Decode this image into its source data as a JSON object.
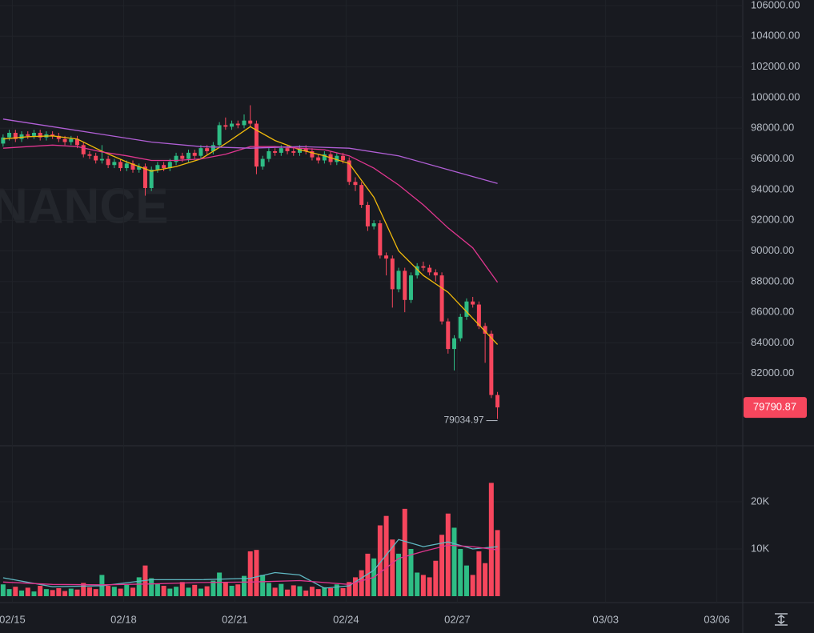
{
  "chart_data": {
    "type": "candlestick",
    "watermark": "NANCE",
    "up_color": "#2ebd85",
    "down_color": "#f6465d",
    "xlim": [
      -0.5,
      119.3
    ],
    "xticks": [
      {
        "value": 1.5,
        "label": "02/15"
      },
      {
        "value": 19.5,
        "label": "02/18"
      },
      {
        "value": 37.5,
        "label": "02/21"
      },
      {
        "value": 55.5,
        "label": "02/24"
      },
      {
        "value": 73.5,
        "label": "02/27"
      },
      {
        "value": 97.5,
        "label": "03/03"
      },
      {
        "value": 115.5,
        "label": "03/06"
      }
    ],
    "ylim": [
      77290,
      106365
    ],
    "yticks": [
      {
        "value": 82000,
        "label": "82000.00"
      },
      {
        "value": 84000,
        "label": "84000.00"
      },
      {
        "value": 86000,
        "label": "86000.00"
      },
      {
        "value": 88000,
        "label": "88000.00"
      },
      {
        "value": 90000,
        "label": "90000.00"
      },
      {
        "value": 92000,
        "label": "92000.00"
      },
      {
        "value": 94000,
        "label": "94000.00"
      },
      {
        "value": 96000,
        "label": "96000.00"
      },
      {
        "value": 98000,
        "label": "98000.00"
      },
      {
        "value": 100000,
        "label": "100000.00"
      },
      {
        "value": 102000,
        "label": "102000.00"
      },
      {
        "value": 104000,
        "label": "104000.00"
      },
      {
        "value": 106000,
        "label": "106000.00"
      }
    ],
    "open": [
      97000,
      97400,
      97700,
      97300,
      97600,
      97500,
      97700,
      97400,
      97600,
      97500,
      97300,
      97100,
      97300,
      96900,
      96300,
      96200,
      95900,
      96000,
      95600,
      95800,
      95400,
      95700,
      95300,
      95500,
      94100,
      95300,
      95600,
      95400,
      95800,
      96200,
      96000,
      96400,
      96200,
      96700,
      96500,
      96900,
      98200,
      98100,
      98300,
      98200,
      98500,
      98300,
      95500,
      96000,
      96500,
      96400,
      96700,
      96500,
      96400,
      96700,
      96500,
      96100,
      95900,
      96300,
      95800,
      96200,
      95900,
      94500,
      94300,
      93000,
      91600,
      91800,
      89700,
      89500,
      87500,
      88700,
      86800,
      88400,
      89000,
      88900,
      88600,
      88400,
      85400,
      83600,
      84300,
      85700,
      86700,
      86500,
      85100,
      84600,
      80600
    ],
    "high": [
      97600,
      97900,
      97900,
      97800,
      97800,
      97900,
      97900,
      97800,
      97800,
      97700,
      97500,
      97500,
      97500,
      97100,
      96500,
      96400,
      96900,
      96200,
      96000,
      96000,
      95900,
      95900,
      95700,
      95700,
      95500,
      95800,
      95800,
      96000,
      96400,
      96400,
      96600,
      96600,
      96900,
      96900,
      97100,
      98400,
      98700,
      98500,
      98500,
      98900,
      99500,
      98500,
      96200,
      96700,
      96700,
      96900,
      96900,
      96700,
      96900,
      96900,
      96700,
      96300,
      96500,
      96500,
      96400,
      96400,
      96100,
      94800,
      94500,
      93200,
      92000,
      92000,
      89900,
      89700,
      88900,
      88900,
      88600,
      89200,
      89300,
      89100,
      88800,
      88600,
      85600,
      84500,
      85900,
      86900,
      87000,
      86700,
      85300,
      84800,
      80800
    ],
    "low": [
      96800,
      97200,
      97100,
      97100,
      97300,
      97300,
      97200,
      97200,
      97300,
      97100,
      96900,
      96900,
      96700,
      96100,
      96000,
      95700,
      95700,
      95400,
      95400,
      95200,
      95200,
      95100,
      95100,
      93600,
      93900,
      95100,
      95200,
      95200,
      95600,
      95800,
      95800,
      96000,
      96000,
      96300,
      96300,
      96700,
      97900,
      97900,
      98000,
      98000,
      98100,
      95000,
      95300,
      95800,
      96200,
      96200,
      96300,
      96200,
      96200,
      96300,
      95900,
      95700,
      95700,
      95600,
      95600,
      95700,
      94300,
      93900,
      92800,
      91300,
      91400,
      89500,
      88400,
      86300,
      87300,
      86000,
      86600,
      88200,
      88700,
      88400,
      88000,
      85200,
      83300,
      82200,
      84100,
      85500,
      86300,
      84900,
      82700,
      80400,
      79034.97
    ],
    "close": [
      97400,
      97700,
      97300,
      97600,
      97500,
      97700,
      97400,
      97600,
      97500,
      97300,
      97100,
      97300,
      96900,
      96300,
      96200,
      95900,
      96000,
      95600,
      95800,
      95400,
      95700,
      95300,
      95500,
      94100,
      95300,
      95600,
      95400,
      95800,
      96200,
      96000,
      96400,
      96200,
      96700,
      96500,
      96900,
      98200,
      98100,
      98300,
      98200,
      98500,
      98300,
      95500,
      96000,
      96500,
      96400,
      96700,
      96500,
      96400,
      96700,
      96500,
      96100,
      95900,
      96300,
      95800,
      96200,
      95900,
      94500,
      94300,
      93000,
      91600,
      91800,
      89700,
      89500,
      87500,
      88700,
      86800,
      88400,
      89000,
      88900,
      88600,
      88400,
      85400,
      83600,
      84300,
      85700,
      86700,
      86500,
      85100,
      84600,
      80600,
      79790.87
    ],
    "moving_averages": [
      {
        "color": "#f0b90b",
        "x": [
          0,
          4,
          8,
          12,
          16,
          20,
          24,
          28,
          32,
          36,
          40,
          44,
          48,
          52,
          56,
          60,
          64,
          68,
          72,
          76,
          80
        ],
        "values": [
          97300,
          97450,
          97500,
          97300,
          96500,
          95800,
          95200,
          95500,
          96000,
          97000,
          98100,
          97200,
          96600,
          96200,
          95700,
          93500,
          90000,
          88400,
          87300,
          85600,
          83900
        ]
      },
      {
        "color": "#e0368f",
        "x": [
          0,
          4,
          8,
          12,
          16,
          20,
          24,
          28,
          32,
          36,
          40,
          44,
          48,
          52,
          56,
          60,
          64,
          68,
          72,
          76,
          80
        ],
        "values": [
          96700,
          96800,
          96900,
          96800,
          96450,
          96200,
          95900,
          95900,
          96000,
          96300,
          96800,
          96800,
          96700,
          96600,
          96200,
          95400,
          94300,
          93000,
          91500,
          90200,
          87950
        ]
      },
      {
        "color": "#b15fd6",
        "x": [
          0,
          8,
          16,
          24,
          32,
          40,
          48,
          56,
          64,
          72,
          80
        ],
        "values": [
          98600,
          98100,
          97600,
          97100,
          96800,
          96700,
          96800,
          96700,
          96200,
          95300,
          94400
        ]
      }
    ],
    "volume": {
      "ylim": [
        0,
        31356
      ],
      "yticks": [
        {
          "value": 10000,
          "label": "10K"
        },
        {
          "value": 20000,
          "label": "20K"
        }
      ],
      "values": [
        2500,
        1500,
        2000,
        1200,
        1800,
        1000,
        2200,
        1500,
        1300,
        1700,
        1100,
        1600,
        1400,
        2800,
        1900,
        1500,
        4500,
        2200,
        2000,
        1600,
        2400,
        1800,
        4000,
        6500,
        3800,
        2600,
        2200,
        1600,
        2000,
        3000,
        1800,
        2400,
        1600,
        2100,
        3300,
        5000,
        2900,
        2200,
        2500,
        4300,
        9500,
        9800,
        4500,
        2800,
        1800,
        2600,
        1400,
        2300,
        2100,
        1200,
        2000,
        1500,
        1900,
        1700,
        2500,
        1700,
        3000,
        4000,
        5500,
        9000,
        8000,
        15000,
        17000,
        12000,
        9000,
        18500,
        10000,
        5000,
        4500,
        4000,
        7500,
        13000,
        17500,
        14500,
        10000,
        6500,
        4500,
        9500,
        7000,
        24000,
        14000
      ],
      "moving_averages": [
        {
          "color": "#5fb8c2",
          "x": [
            0,
            8,
            16,
            24,
            32,
            40,
            44,
            48,
            52,
            56,
            60,
            64,
            68,
            72,
            76,
            80
          ],
          "values": [
            3900,
            2000,
            2200,
            3500,
            3500,
            3800,
            5000,
            4500,
            1700,
            2200,
            5500,
            12000,
            10500,
            11500,
            10000,
            10500
          ]
        },
        {
          "color": "#e0368f",
          "x": [
            0,
            8,
            16,
            24,
            32,
            40,
            48,
            56,
            60,
            64,
            68,
            72,
            76,
            80
          ],
          "values": [
            3000,
            2500,
            2400,
            2600,
            2900,
            3000,
            3300,
            2500,
            4000,
            8000,
            9500,
            10800,
            10500,
            9800
          ]
        }
      ]
    }
  }
}
